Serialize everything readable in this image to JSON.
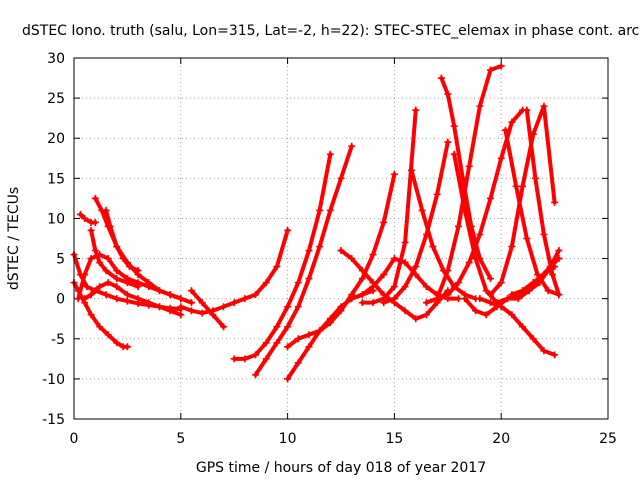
{
  "chart_data": {
    "type": "scatter",
    "title": "dSTEC Iono. truth (salu, Lon=315, Lat=-2, h=22): STEC-STEC_elemax in phase cont. arc",
    "xlabel": "GPS time / hours of day 018 of year 2017",
    "ylabel": "dSTEC  / TECUs",
    "xlim": [
      0,
      25
    ],
    "ylim": [
      -15,
      30
    ],
    "xticks": [
      0,
      5,
      10,
      15,
      20,
      25
    ],
    "yticks": [
      -15,
      -10,
      -5,
      0,
      5,
      10,
      15,
      20,
      25,
      30
    ],
    "grid": true,
    "marker": "plus",
    "color": "#ff0000",
    "series": [
      {
        "x": [
          0.0,
          0.3,
          0.6,
          1.0,
          1.5,
          2.0,
          2.5,
          3.0,
          3.5,
          4.0,
          4.5,
          5.0
        ],
        "values": [
          5.5,
          3.0,
          1.5,
          1.0,
          0.5,
          0.0,
          -0.3,
          -0.6,
          -0.8,
          -1.0,
          -1.2,
          -1.3
        ]
      },
      {
        "x": [
          0.0,
          0.2,
          0.5,
          0.8,
          1.2,
          1.6,
          2.0,
          2.3,
          2.5
        ],
        "values": [
          2.0,
          1.0,
          -0.5,
          -2.0,
          -3.5,
          -4.5,
          -5.5,
          -6.0,
          -6.0
        ]
      },
      {
        "x": [
          0.3,
          0.5,
          0.8,
          1.0
        ],
        "values": [
          10.5,
          10.0,
          9.5,
          9.5
        ]
      },
      {
        "x": [
          1.0,
          1.3,
          1.6,
          2.0,
          2.5,
          3.0,
          3.5,
          4.0,
          4.5,
          5.0
        ],
        "values": [
          12.5,
          11.0,
          9.0,
          6.5,
          4.5,
          3.0,
          2.0,
          1.0,
          0.5,
          0.0
        ]
      },
      {
        "x": [
          1.5,
          1.7,
          2.0,
          2.3,
          2.6,
          3.0
        ],
        "values": [
          11.0,
          9.0,
          6.5,
          5.0,
          4.0,
          3.5
        ]
      },
      {
        "x": [
          0.2,
          0.5,
          0.8,
          1.2,
          1.6,
          2.0,
          2.5,
          3.0,
          3.5,
          4.0,
          4.5,
          5.0,
          5.5
        ],
        "values": [
          0.0,
          3.0,
          5.0,
          5.5,
          5.0,
          3.5,
          2.5,
          2.0,
          1.5,
          1.0,
          0.5,
          0.0,
          -0.5
        ]
      },
      {
        "x": [
          0.5,
          0.8,
          1.2,
          1.6,
          2.0,
          2.5,
          3.0,
          3.5,
          4.0,
          4.5,
          5.0
        ],
        "values": [
          0.0,
          0.5,
          1.5,
          2.0,
          1.5,
          0.5,
          0.0,
          -0.5,
          -1.0,
          -1.5,
          -2.0
        ]
      },
      {
        "x": [
          0.8,
          1.0,
          1.2,
          1.5,
          2.0,
          2.5,
          3.0
        ],
        "values": [
          8.5,
          6.0,
          4.5,
          3.5,
          2.5,
          2.0,
          1.5
        ]
      },
      {
        "x": [
          5.5,
          6.0,
          6.5,
          7.0
        ],
        "values": [
          1.0,
          -0.5,
          -2.0,
          -3.5
        ]
      },
      {
        "x": [
          5.0,
          5.5,
          6.0,
          6.5,
          7.0,
          7.5,
          8.0,
          8.5,
          9.0,
          9.5,
          10.0
        ],
        "values": [
          -1.0,
          -1.5,
          -1.8,
          -1.5,
          -1.0,
          -0.5,
          0.0,
          0.5,
          2.0,
          4.0,
          8.5
        ]
      },
      {
        "x": [
          7.5,
          8.0,
          8.5,
          9.0,
          9.5,
          10.0,
          10.5,
          11.0,
          11.5,
          12.0
        ],
        "values": [
          -7.5,
          -7.5,
          -7.0,
          -5.5,
          -3.5,
          -1.0,
          2.0,
          6.0,
          11.0,
          18.0
        ]
      },
      {
        "x": [
          8.5,
          9.0,
          9.5,
          10.0,
          10.5,
          11.0,
          11.5,
          12.0,
          12.5,
          13.0
        ],
        "values": [
          -9.5,
          -7.5,
          -5.5,
          -3.5,
          -1.0,
          2.5,
          6.5,
          11.0,
          15.0,
          19.0
        ]
      },
      {
        "x": [
          10.0,
          10.5,
          11.0,
          11.5,
          12.0,
          12.5,
          13.0,
          13.5,
          14.0
        ],
        "values": [
          -10.0,
          -8.0,
          -6.0,
          -4.0,
          -2.5,
          -1.0,
          0.0,
          0.5,
          1.0
        ]
      },
      {
        "x": [
          10.0,
          10.5,
          11.0,
          11.5,
          12.0,
          12.5,
          13.0,
          13.5,
          14.0,
          14.5,
          15.0
        ],
        "values": [
          -6.0,
          -5.0,
          -4.5,
          -4.0,
          -3.0,
          -1.5,
          0.5,
          2.5,
          5.5,
          9.5,
          15.5
        ]
      },
      {
        "x": [
          12.5,
          13.0,
          13.5,
          14.0,
          14.5,
          15.0,
          15.5,
          16.0,
          16.5,
          17.0,
          17.5
        ],
        "values": [
          6.0,
          5.0,
          3.5,
          2.0,
          0.5,
          -0.5,
          -1.5,
          -2.5,
          -2.0,
          -0.5,
          1.0
        ]
      },
      {
        "x": [
          13.0,
          13.5,
          14.0,
          14.5,
          15.0,
          15.5,
          16.0,
          16.5,
          17.0,
          17.5,
          18.0
        ],
        "values": [
          0.0,
          0.5,
          1.5,
          3.0,
          5.0,
          4.5,
          3.0,
          1.5,
          0.5,
          0.0,
          0.0
        ]
      },
      {
        "x": [
          13.5,
          14.0,
          14.5,
          15.0,
          15.5,
          16.0
        ],
        "values": [
          -0.5,
          -0.5,
          0.0,
          1.5,
          7.0,
          23.5
        ]
      },
      {
        "x": [
          14.5,
          15.0,
          15.5,
          16.0,
          16.5,
          17.0,
          17.5
        ],
        "values": [
          -0.5,
          0.0,
          1.5,
          4.0,
          8.0,
          13.0,
          19.5
        ]
      },
      {
        "x": [
          15.8,
          16.3,
          16.8,
          17.3,
          17.8,
          18.3,
          18.8
        ],
        "values": [
          16.0,
          11.0,
          6.5,
          3.5,
          1.5,
          0.5,
          0.0
        ]
      },
      {
        "x": [
          16.5,
          17.0,
          17.5,
          18.0,
          18.5,
          19.0,
          19.5,
          20.0,
          20.5,
          21.0
        ],
        "values": [
          -0.5,
          0.0,
          0.5,
          2.0,
          4.5,
          8.0,
          12.5,
          17.5,
          22.0,
          23.5
        ]
      },
      {
        "x": [
          17.0,
          17.5,
          18.0,
          18.5,
          19.0,
          19.5,
          20.0
        ],
        "values": [
          0.0,
          3.5,
          9.0,
          16.5,
          24.0,
          28.5,
          29.0
        ]
      },
      {
        "x": [
          17.2,
          17.5,
          17.8,
          18.2,
          18.6,
          19.0,
          19.5
        ],
        "values": [
          27.5,
          25.5,
          21.5,
          15.0,
          9.0,
          5.0,
          2.5
        ]
      },
      {
        "x": [
          17.8,
          18.3,
          18.8,
          19.3,
          19.8,
          20.3,
          20.8,
          21.3,
          21.8,
          22.3,
          22.7
        ],
        "values": [
          18.0,
          11.0,
          5.0,
          1.0,
          -0.5,
          0.0,
          0.5,
          1.0,
          2.0,
          4.0,
          6.0
        ]
      },
      {
        "x": [
          18.3,
          18.8,
          19.3,
          19.8,
          20.3,
          20.8,
          21.3,
          21.8,
          22.3,
          22.7
        ],
        "values": [
          0.0,
          -1.5,
          -2.0,
          -1.0,
          0.0,
          0.0,
          1.0,
          2.5,
          4.0,
          5.0
        ]
      },
      {
        "x": [
          19.0,
          19.5,
          20.0,
          20.5,
          21.0,
          21.5,
          22.0,
          22.5
        ],
        "values": [
          0.0,
          -0.5,
          -1.0,
          -2.0,
          -3.5,
          -5.0,
          -6.5,
          -7.0
        ]
      },
      {
        "x": [
          20.2,
          20.7,
          21.2,
          21.7,
          22.2,
          22.7
        ],
        "values": [
          21.0,
          14.0,
          7.5,
          3.0,
          1.0,
          0.5
        ]
      },
      {
        "x": [
          19.5,
          20.0,
          20.5,
          21.0,
          21.5,
          22.0,
          22.5
        ],
        "values": [
          0.5,
          2.0,
          6.5,
          14.0,
          20.5,
          24.0,
          12.0
        ]
      },
      {
        "x": [
          21.2,
          21.6,
          22.0,
          22.4,
          22.7
        ],
        "values": [
          23.5,
          15.0,
          8.0,
          3.0,
          0.5
        ]
      },
      {
        "x": [
          20.5,
          21.0,
          21.5,
          22.0,
          22.5
        ],
        "values": [
          0.5,
          1.0,
          2.0,
          3.0,
          4.0
        ]
      }
    ]
  }
}
